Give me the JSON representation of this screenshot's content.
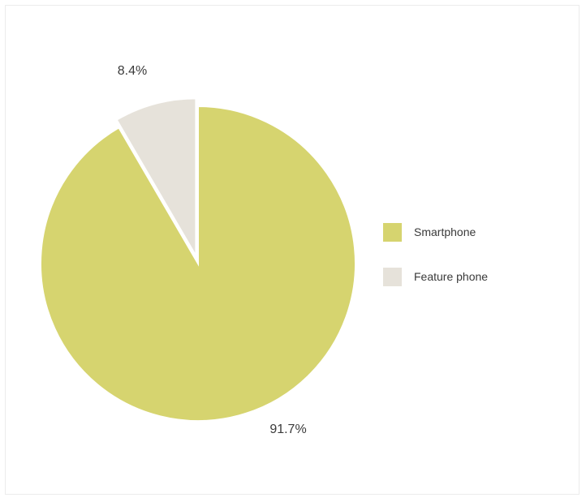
{
  "chart_data": {
    "type": "pie",
    "slices": [
      {
        "name": "Smartphone",
        "value": 91.7,
        "label": "91.7%",
        "color": "#d6d46f",
        "exploded": false
      },
      {
        "name": "Feature phone",
        "value": 8.4,
        "label": "8.4%",
        "color": "#e6e2da",
        "exploded": true
      }
    ],
    "legend": {
      "placement": "right",
      "items": [
        "Smartphone",
        "Feature phone"
      ]
    }
  }
}
